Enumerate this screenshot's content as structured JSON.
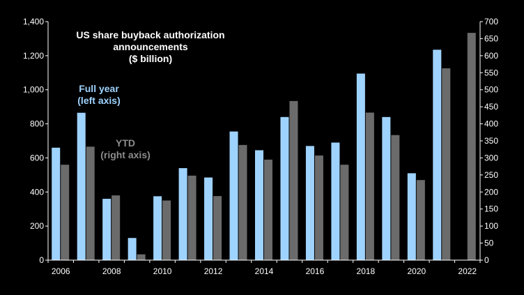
{
  "chart_data": {
    "type": "bar",
    "title": "US share buyback authorization announcements ($ billion)",
    "title_lines": [
      "US share buyback authorization",
      "announcements",
      "($ billion)"
    ],
    "categories": [
      "2006",
      "2007",
      "2008",
      "2009",
      "2010",
      "2011",
      "2012",
      "2013",
      "2014",
      "2015",
      "2016",
      "2017",
      "2018",
      "2019",
      "2020",
      "2021",
      "2022"
    ],
    "x_tick_labels": [
      "2006",
      "2008",
      "2010",
      "2012",
      "2014",
      "2016",
      "2018",
      "2020",
      "2022"
    ],
    "series": [
      {
        "name": "Full year (left axis)",
        "name_lines": [
          "Full year",
          "(left axis)"
        ],
        "axis": "left",
        "color": "#9fd3ff",
        "values": [
          660,
          865,
          360,
          130,
          375,
          540,
          485,
          755,
          645,
          840,
          670,
          690,
          1095,
          840,
          510,
          1235,
          null
        ]
      },
      {
        "name": "YTD (right axis)",
        "name_lines": [
          "YTD",
          "(right axis)"
        ],
        "axis": "right",
        "color": "#6b6b6b",
        "values": [
          280,
          333,
          190,
          17,
          175,
          248,
          188,
          338,
          295,
          467,
          307,
          280,
          433,
          367,
          235,
          563,
          667
        ]
      }
    ],
    "y_left": {
      "min": 0,
      "max": 1400,
      "ticks": [
        0,
        200,
        400,
        600,
        800,
        1000,
        1200,
        1400
      ],
      "tick_labels": [
        "0",
        "200",
        "400",
        "600",
        "800",
        "1,000",
        "1,200",
        "1,400"
      ]
    },
    "y_right": {
      "min": 0,
      "max": 700,
      "ticks": [
        0,
        50,
        100,
        150,
        200,
        250,
        300,
        350,
        400,
        450,
        500,
        550,
        600,
        650,
        700
      ],
      "tick_labels": [
        "0",
        "50",
        "100",
        "150",
        "200",
        "250",
        "300",
        "350",
        "400",
        "450",
        "500",
        "550",
        "600",
        "650",
        "700"
      ]
    },
    "grid": false,
    "background": "#000000",
    "text_color": "#ffffff"
  }
}
